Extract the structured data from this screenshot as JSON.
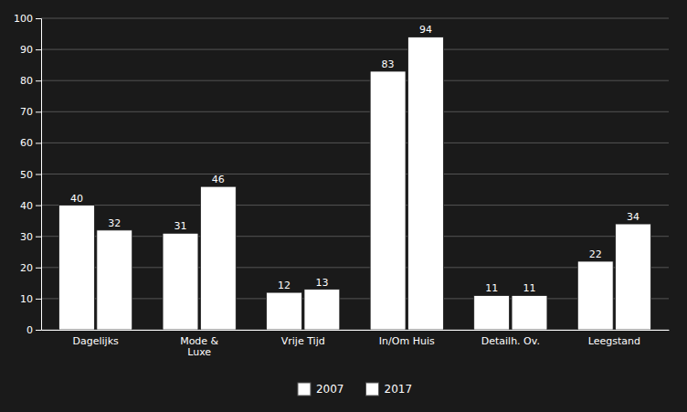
{
  "chart_data": {
    "type": "bar",
    "categories": [
      "Dagelijks",
      "Mode &\nLuxe",
      "Vrije Tijd",
      "In/Om Huis",
      "Detailh. Ov.",
      "Leegstand"
    ],
    "series": [
      {
        "name": "2007",
        "color": "#ffffff",
        "values": [
          40,
          31,
          12,
          83,
          11,
          22
        ]
      },
      {
        "name": "2017",
        "color": "#ffffff",
        "values": [
          32,
          46,
          13,
          94,
          11,
          34
        ]
      }
    ],
    "ylim": [
      0,
      100
    ],
    "yticks": [
      0,
      10,
      20,
      30,
      40,
      50,
      60,
      70,
      80,
      90,
      100
    ],
    "grid": true,
    "data_labels": true,
    "legend": "bottom"
  }
}
